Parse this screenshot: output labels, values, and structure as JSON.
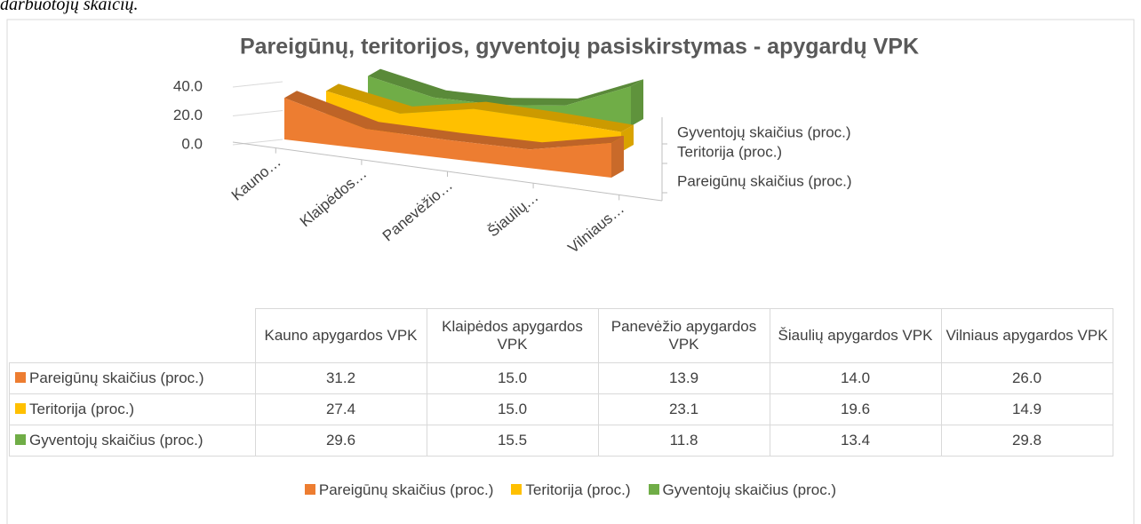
{
  "caption_fragment": "darbuotojų skaičių.",
  "chart_data": {
    "type": "area3d",
    "title": "Pareigūnų, teritorijos, gyventojų pasiskirstymas - apygardų VPK",
    "categories": [
      "Kauno apygardos VPK",
      "Klaipėdos apygardos VPK",
      "Panevėžio apygardos VPK",
      "Šiaulių apygardos VPK",
      "Vilniaus apygardos VPK"
    ],
    "category_axis_labels": [
      "Kauno…",
      "Klaipėdos…",
      "Panevėžio…",
      "Šiaulių…",
      "Vilniaus…"
    ],
    "series": [
      {
        "name": "Pareigūnų skaičius (proc.)",
        "color": "#ED7D31",
        "values": [
          31.2,
          15,
          13.9,
          14,
          26
        ],
        "value_labels": [
          "31.2",
          "15.0",
          "13.9",
          "14.0",
          "26.0"
        ]
      },
      {
        "name": "Teritorija (proc.)",
        "color": "#FFC000",
        "values": [
          27.4,
          15,
          23.1,
          19.6,
          14.9
        ],
        "value_labels": [
          "27.4",
          "15.0",
          "23.1",
          "19.6",
          "14.9"
        ]
      },
      {
        "name": "Gyventojų skaičius (proc.)",
        "color": "#70AD47",
        "values": [
          29.6,
          15.5,
          11.8,
          13.4,
          29.8
        ],
        "value_labels": [
          "29.6",
          "15.5",
          "11.8",
          "13.4",
          "29.8"
        ]
      }
    ],
    "ylim": [
      0,
      40
    ],
    "yticks": [
      {
        "value": 0,
        "label": "0.0"
      },
      {
        "value": 20,
        "label": "20.0"
      },
      {
        "value": 40,
        "label": "40.0"
      }
    ],
    "grid": true,
    "data_table": true,
    "legend": "bottom"
  }
}
